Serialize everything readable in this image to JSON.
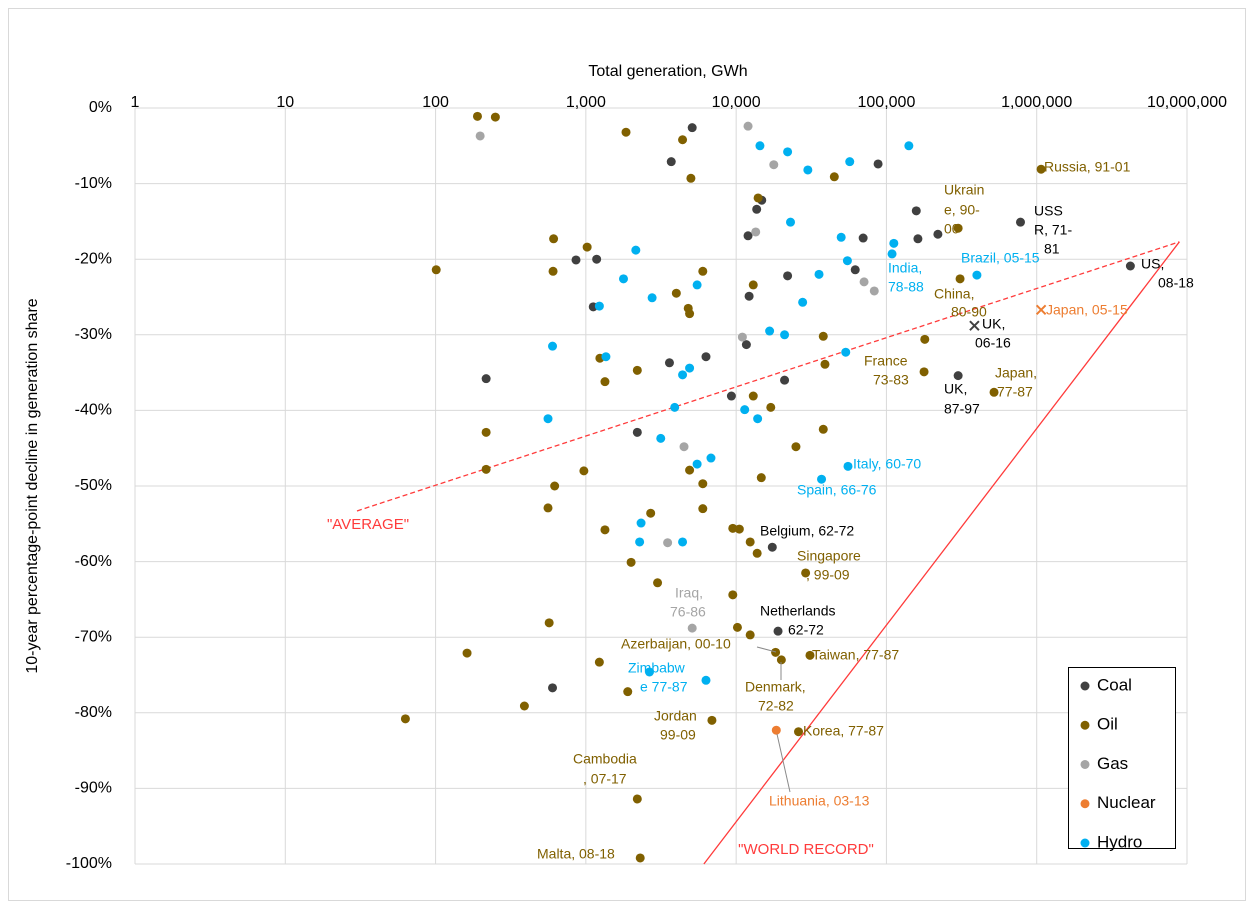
{
  "chart_data": {
    "type": "scatter",
    "x_label": "Total generation,  GWh",
    "y_label": "10-year percentage-point decline in generation share",
    "xscale": "log",
    "xlim": [
      1,
      10000000
    ],
    "xticks": [
      1,
      10,
      100,
      {
        "value": 1000,
        "label": "1,000"
      },
      {
        "value": 10000,
        "label": "10,000"
      },
      {
        "value": 100000,
        "label": "100,000"
      },
      {
        "value": 1000000,
        "label": "1,000,000"
      },
      {
        "value": 10000000,
        "label": "10,000,000"
      }
    ],
    "ylim": [
      -100,
      0
    ],
    "yticks": [
      {
        "value": 0,
        "label": "0%"
      },
      {
        "value": -10,
        "label": "-10%"
      },
      {
        "value": -20,
        "label": "-20%"
      },
      {
        "value": -30,
        "label": "-30%"
      },
      {
        "value": -40,
        "label": "-40%"
      },
      {
        "value": -50,
        "label": "-50%"
      },
      {
        "value": -60,
        "label": "-60%"
      },
      {
        "value": -70,
        "label": "-70%"
      },
      {
        "value": -80,
        "label": "-80%"
      },
      {
        "value": -90,
        "label": "-90%"
      },
      {
        "value": -100,
        "label": "-100%"
      }
    ],
    "grid": true,
    "legend": "lower right",
    "series": [
      {
        "name": "Coal",
        "color": "#404040",
        "x": [
          5100,
          3700,
          88000,
          158000,
          14800,
          13700,
          12000,
          70000,
          162000,
          220000,
          62000,
          780000,
          4200000,
          860,
          1180,
          1120,
          12200,
          22000,
          11700,
          6300,
          3600,
          217,
          21000,
          9300,
          300000,
          2200,
          17400,
          19000,
          600,
          385000
        ],
        "values": [
          -2.6,
          -7.1,
          -7.4,
          -13.6,
          -12.2,
          -13.4,
          -16.9,
          -17.2,
          -17.3,
          -16.7,
          -21.4,
          -15.1,
          -20.9,
          -20.1,
          -20.0,
          -26.3,
          -24.9,
          -22.2,
          -31.3,
          -32.9,
          -33.7,
          -35.8,
          -36.0,
          -38.1,
          -35.4,
          -42.9,
          -58.1,
          -69.2,
          -76.7,
          -28.8
        ],
        "markers": [
          "o",
          "o",
          "o",
          "o",
          "o",
          "o",
          "o",
          "o",
          "o",
          "o",
          "o",
          "o",
          "o",
          "o",
          "o",
          "o",
          "o",
          "o",
          "o",
          "o",
          "o",
          "o",
          "o",
          "o",
          "o",
          "o",
          "o",
          "o",
          "o",
          "x"
        ]
      },
      {
        "name": "Oil",
        "color": "#806000",
        "x": [
          190,
          250,
          1850,
          4400,
          5000,
          45000,
          1070000,
          14000,
          101,
          610,
          605,
          1020,
          6000,
          4000,
          4800,
          4900,
          13000,
          300000,
          309000,
          180000,
          178000,
          520000,
          1240,
          1340,
          2200,
          13000,
          17000,
          38000,
          39000,
          38000,
          25000,
          217,
          217,
          970,
          620,
          4900,
          6000,
          14700,
          560,
          2700,
          6000,
          1340,
          9500,
          10500,
          12400,
          13800,
          2000,
          29000,
          3000,
          9500,
          570,
          10200,
          12400,
          18300,
          20000,
          31000,
          162,
          1230,
          1900,
          390,
          6900,
          63,
          26000,
          2200,
          2300
        ],
        "values": [
          -1.1,
          -1.2,
          -3.2,
          -4.2,
          -9.3,
          -9.1,
          -8.1,
          -11.9,
          -21.4,
          -17.3,
          -21.6,
          -18.4,
          -21.6,
          -24.5,
          -26.5,
          -27.2,
          -23.4,
          -15.9,
          -22.6,
          -30.6,
          -34.9,
          -37.6,
          -33.1,
          -36.2,
          -34.7,
          -38.1,
          -39.6,
          -30.2,
          -33.9,
          -42.5,
          -44.8,
          -42.9,
          -47.8,
          -48.0,
          -50.0,
          -47.9,
          -49.7,
          -48.9,
          -52.9,
          -53.6,
          -53.0,
          -55.8,
          -55.6,
          -55.7,
          -57.4,
          -58.9,
          -60.1,
          -61.5,
          -62.8,
          -64.4,
          -68.1,
          -68.7,
          -69.7,
          -72.0,
          -73.0,
          -72.4,
          -72.1,
          -73.3,
          -77.2,
          -79.1,
          -81.0,
          -80.8,
          -82.5,
          -91.4,
          -99.2
        ]
      },
      {
        "name": "Gas",
        "color": "#a5a5a5",
        "x": [
          198,
          12000,
          17800,
          13500,
          71000,
          83000,
          11000,
          4500,
          3500,
          5100
        ],
        "values": [
          -3.7,
          -2.4,
          -7.5,
          -16.4,
          -23.0,
          -24.2,
          -30.3,
          -44.8,
          -57.5,
          -68.8
        ]
      },
      {
        "name": "Nuclear",
        "color": "#ed7d31",
        "x": [
          18500,
          1070000
        ],
        "values": [
          -82.3,
          -26.7
        ],
        "markers": [
          "o",
          "x"
        ]
      },
      {
        "name": "Hydro",
        "color": "#00b0f0",
        "x": [
          14400,
          22000,
          30000,
          57000,
          141000,
          23000,
          50000,
          112000,
          109000,
          55000,
          400000,
          2150,
          1780,
          2760,
          1230,
          5500,
          35600,
          27700,
          16700,
          21000,
          53600,
          600,
          1360,
          4900,
          4400,
          3900,
          11400,
          13900,
          560,
          3150,
          5500,
          6800,
          55500,
          37000,
          2330,
          2280,
          4400,
          2650,
          6300
        ],
        "values": [
          -5.0,
          -5.8,
          -8.2,
          -7.1,
          -5.0,
          -15.1,
          -17.1,
          -17.9,
          -19.3,
          -20.2,
          -22.1,
          -18.8,
          -22.6,
          -25.1,
          -26.2,
          -23.4,
          -22.0,
          -25.7,
          -29.5,
          -30.0,
          -32.3,
          -31.5,
          -32.9,
          -34.4,
          -35.3,
          -39.6,
          -39.9,
          -41.1,
          -41.1,
          -43.7,
          -47.1,
          -46.3,
          -47.4,
          -49.1,
          -54.9,
          -57.4,
          -57.4,
          -74.6,
          -75.7
        ]
      }
    ],
    "reference_lines": [
      {
        "name": "\"AVERAGE\"",
        "color": "#ff3b3b",
        "dashed": true,
        "x": [
          30,
          8900000
        ],
        "y": [
          -53.3,
          -17.7
        ]
      },
      {
        "name": "\"WORLD RECORD\"",
        "color": "#ff3b3b",
        "dashed": false,
        "x": [
          6100,
          8900000
        ],
        "y": [
          -100,
          -17.7
        ]
      }
    ],
    "annotations": [
      {
        "text": [
          "Russia, 91-01"
        ],
        "color": "#806000"
      },
      {
        "text": [
          "Ukrain",
          "e, 90-",
          "00"
        ],
        "color": "#806000"
      },
      {
        "text": [
          "USS",
          "R, 71-",
          "81"
        ],
        "color": "#000000"
      },
      {
        "text": [
          "US,",
          "08-18"
        ],
        "color": "#000000"
      },
      {
        "text": [
          "Brazil, 05-15"
        ],
        "color": "#00b0f0"
      },
      {
        "text": [
          "India,",
          "78-88"
        ],
        "color": "#00b0f0"
      },
      {
        "text": [
          "China,",
          "80-90"
        ],
        "color": "#806000"
      },
      {
        "text": [
          "Japan, 05-15"
        ],
        "color": "#ed7d31"
      },
      {
        "text": [
          "UK,",
          "06-16"
        ],
        "color": "#000000"
      },
      {
        "text": [
          "France",
          "73-83"
        ],
        "color": "#806000"
      },
      {
        "text": [
          "Japan,",
          "77-87"
        ],
        "color": "#806000"
      },
      {
        "text": [
          "UK,",
          "87-97"
        ],
        "color": "#000000"
      },
      {
        "text": [
          "Italy, 60-70"
        ],
        "color": "#00b0f0"
      },
      {
        "text": [
          "Spain, 66-76"
        ],
        "color": "#00b0f0"
      },
      {
        "text": [
          "Belgium, 62-72"
        ],
        "color": "#000000"
      },
      {
        "text": [
          "Singapore",
          ", 99-09"
        ],
        "color": "#806000"
      },
      {
        "text": [
          "Iraq,",
          "76-86"
        ],
        "color": "#a5a5a5"
      },
      {
        "text": [
          "Netherlands",
          "62-72"
        ],
        "color": "#000000"
      },
      {
        "text": [
          "Azerbaijan, 00-10"
        ],
        "color": "#806000"
      },
      {
        "text": [
          "Taiwan, 77-87"
        ],
        "color": "#806000"
      },
      {
        "text": [
          "Zimbabw",
          "e 77-87"
        ],
        "color": "#00b0f0"
      },
      {
        "text": [
          "Denmark,",
          "72-82"
        ],
        "color": "#806000"
      },
      {
        "text": [
          "Jordan",
          "99-09"
        ],
        "color": "#806000"
      },
      {
        "text": [
          "Korea, 77-87"
        ],
        "color": "#806000"
      },
      {
        "text": [
          "Cambodia",
          ", 07-17"
        ],
        "color": "#806000"
      },
      {
        "text": [
          "Lithuania, 03-13"
        ],
        "color": "#ed7d31"
      },
      {
        "text": [
          "Malta, 08-18"
        ],
        "color": "#806000"
      }
    ]
  }
}
